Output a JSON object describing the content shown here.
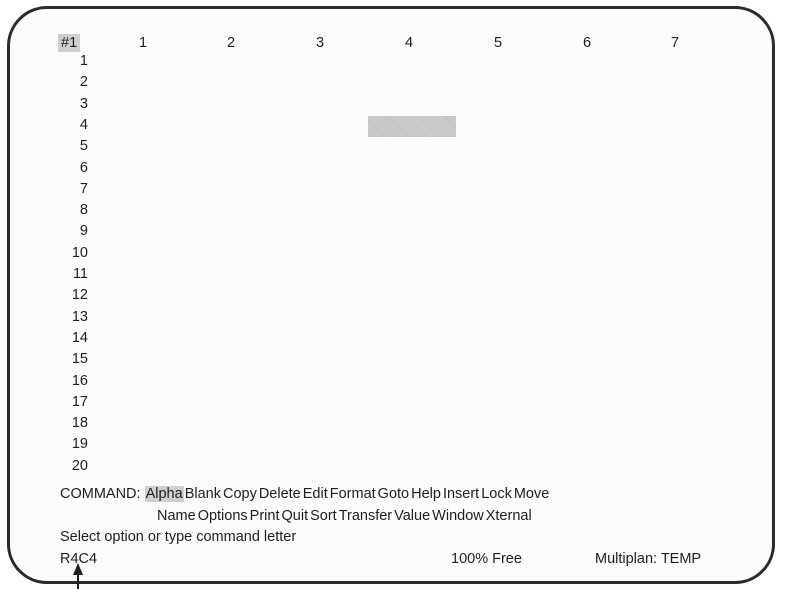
{
  "corner_label": "#1",
  "columns": [
    "1",
    "2",
    "3",
    "4",
    "5",
    "6",
    "7"
  ],
  "rows": [
    "1",
    "2",
    "3",
    "4",
    "5",
    "6",
    "7",
    "8",
    "9",
    "10",
    "11",
    "12",
    "13",
    "14",
    "15",
    "16",
    "17",
    "18",
    "19",
    "20"
  ],
  "command": {
    "label": "COMMAND:",
    "selected": "Alpha",
    "line1": [
      "Alpha",
      "Blank",
      "Copy",
      "Delete",
      "Edit",
      "Format",
      "Goto",
      "Help",
      "Insert",
      "Lock",
      "Move"
    ],
    "line2": [
      "Name",
      "Options",
      "Print",
      "Quit",
      "Sort",
      "Transfer",
      "Value",
      "Window",
      "Xternal"
    ]
  },
  "message": "Select option or type command letter",
  "status": {
    "cell_ref": "R4C4",
    "free": "100% Free",
    "program": "Multiplan: TEMP"
  },
  "active_cell": {
    "row": 4,
    "col": 4
  },
  "colors": {
    "highlight": "#cfcfcf",
    "border": "#2b2b2b"
  }
}
